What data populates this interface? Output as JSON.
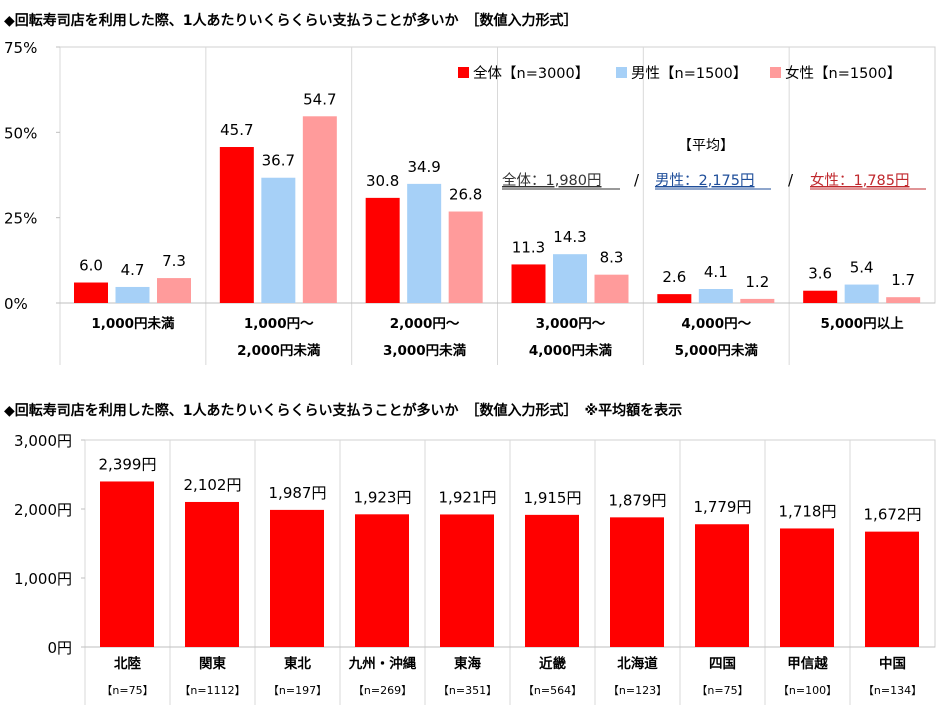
{
  "chart_data": [
    {
      "type": "bar",
      "title": "◆回転寿司店を利用した際、1人あたりいくらくらい支払うことが多いか　［数値入力形式］",
      "categories": [
        [
          "1,000円未満"
        ],
        [
          "1,000円～",
          "2,000円未満"
        ],
        [
          "2,000円～",
          "3,000円未満"
        ],
        [
          "3,000円～",
          "4,000円未満"
        ],
        [
          "4,000円～",
          "5,000円未満"
        ],
        [
          "5,000円以上"
        ]
      ],
      "series": [
        {
          "name": "全体【n=3000】",
          "color": "#ff0000",
          "values": [
            6.0,
            45.7,
            30.8,
            11.3,
            2.6,
            3.6
          ]
        },
        {
          "name": "男性【n=1500】",
          "color": "#a6d0f7",
          "values": [
            4.7,
            36.7,
            34.9,
            14.3,
            4.1,
            5.4
          ]
        },
        {
          "name": "女性【n=1500】",
          "color": "#ff9b9b",
          "values": [
            7.3,
            54.7,
            26.8,
            8.3,
            1.2,
            1.7
          ]
        }
      ],
      "ylim": [
        0,
        75
      ],
      "yticks": [
        "0%",
        "25%",
        "50%",
        "75%"
      ],
      "legend": "top-right",
      "grid": "vertical separators",
      "annotation": {
        "heading": "【平均】",
        "items": [
          {
            "text": "全体：1,980円",
            "color": "#333333"
          },
          {
            "text": "男性：2,175円",
            "color": "#1f4e9a"
          },
          {
            "text": "女性：1,785円",
            "color": "#c0282d"
          }
        ],
        "separator": "/"
      }
    },
    {
      "type": "bar",
      "title": "◆回転寿司店を利用した際、1人あたりいくらくらい支払うことが多いか　［数値入力形式］　※平均額を表示",
      "categories": [
        "北陸",
        "関東",
        "東北",
        "九州・沖縄",
        "東海",
        "近畿",
        "北海道",
        "四国",
        "甲信越",
        "中国"
      ],
      "sample_sizes": [
        "【n=75】",
        "【n=1112】",
        "【n=197】",
        "【n=269】",
        "【n=351】",
        "【n=564】",
        "【n=123】",
        "【n=75】",
        "【n=100】",
        "【n=134】"
      ],
      "values": [
        2399,
        2102,
        1987,
        1923,
        1921,
        1915,
        1879,
        1779,
        1718,
        1672
      ],
      "data_labels": [
        "2,399円",
        "2,102円",
        "1,987円",
        "1,923円",
        "1,921円",
        "1,915円",
        "1,879円",
        "1,779円",
        "1,718円",
        "1,672円"
      ],
      "color": "#ff0000",
      "ylim": [
        0,
        3000
      ],
      "yticks": [
        "0円",
        "1,000円",
        "2,000円",
        "3,000円"
      ]
    }
  ]
}
